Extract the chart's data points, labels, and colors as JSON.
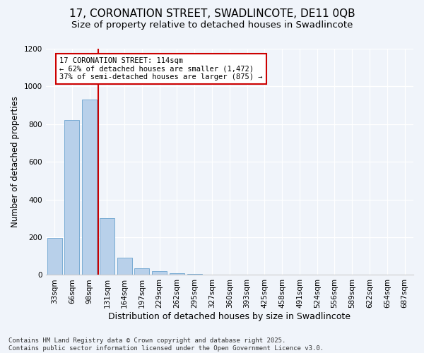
{
  "title_line1": "17, CORONATION STREET, SWADLINCOTE, DE11 0QB",
  "title_line2": "Size of property relative to detached houses in Swadlincote",
  "xlabel": "Distribution of detached houses by size in Swadlincote",
  "ylabel": "Number of detached properties",
  "categories": [
    "33sqm",
    "66sqm",
    "98sqm",
    "131sqm",
    "164sqm",
    "197sqm",
    "229sqm",
    "262sqm",
    "295sqm",
    "327sqm",
    "360sqm",
    "393sqm",
    "425sqm",
    "458sqm",
    "491sqm",
    "524sqm",
    "556sqm",
    "589sqm",
    "622sqm",
    "654sqm",
    "687sqm"
  ],
  "values": [
    197,
    820,
    930,
    300,
    90,
    35,
    20,
    10,
    5,
    0,
    0,
    0,
    0,
    0,
    0,
    0,
    0,
    0,
    0,
    0,
    0
  ],
  "bar_color": "#b8d0ea",
  "bar_edge_color": "#7aacd4",
  "vline_x_index": 2,
  "vline_color": "#cc0000",
  "annotation_text": "17 CORONATION STREET: 114sqm\n← 62% of detached houses are smaller (1,472)\n37% of semi-detached houses are larger (875) →",
  "annotation_box_color": "#cc0000",
  "ylim": [
    0,
    1200
  ],
  "yticks": [
    0,
    200,
    400,
    600,
    800,
    1000,
    1200
  ],
  "bg_color": "#f0f4fa",
  "plot_bg_color": "#f0f4fa",
  "footer_text": "Contains HM Land Registry data © Crown copyright and database right 2025.\nContains public sector information licensed under the Open Government Licence v3.0.",
  "title_fontsize": 11,
  "subtitle_fontsize": 9.5,
  "xlabel_fontsize": 9,
  "ylabel_fontsize": 8.5,
  "tick_fontsize": 7.5,
  "footer_fontsize": 6.5,
  "ann_fontsize": 7.5
}
